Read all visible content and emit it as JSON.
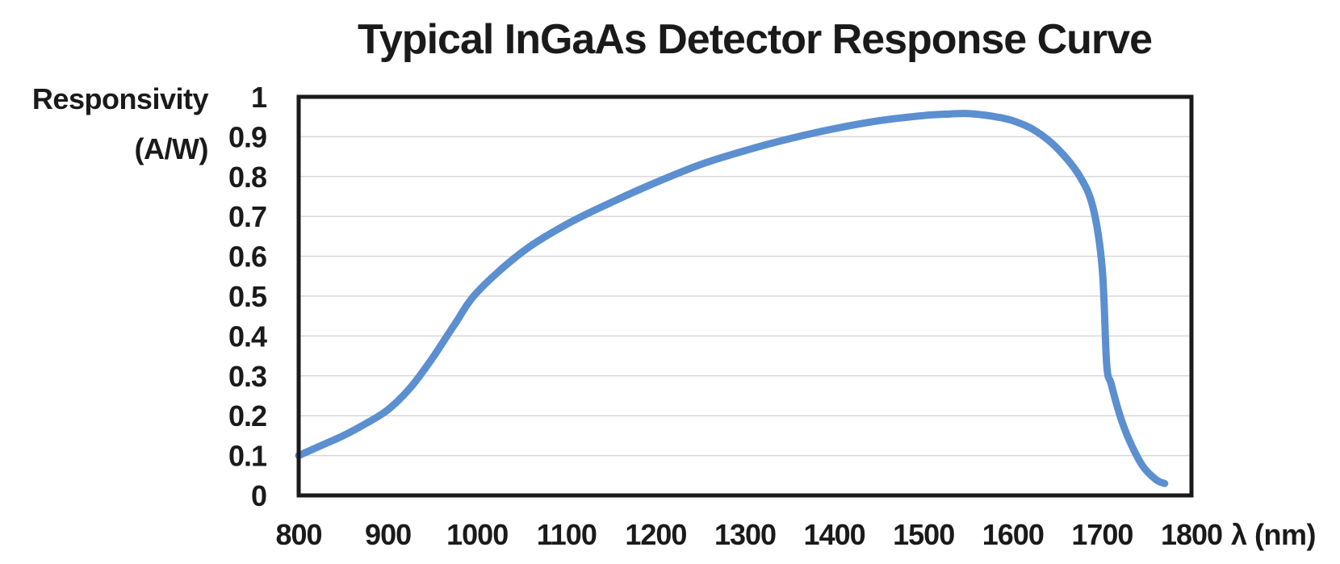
{
  "chart_data": {
    "type": "line",
    "title": "Typical InGaAs Detector Response Curve",
    "ylabel_line1": "Responsivity",
    "ylabel_line2": "(A/W)",
    "xlabel": "λ (nm)",
    "xlim": [
      800,
      1800
    ],
    "ylim": [
      0,
      1
    ],
    "xticks": [
      800,
      900,
      1000,
      1100,
      1200,
      1300,
      1400,
      1500,
      1600,
      1700,
      1800
    ],
    "yticks": [
      0,
      0.1,
      0.2,
      0.3,
      0.4,
      0.5,
      0.6,
      0.7,
      0.8,
      0.9,
      1
    ],
    "ytick_labels": [
      "0",
      "0.1",
      "0.2",
      "0.3",
      "0.4",
      "0.5",
      "0.6",
      "0.7",
      "0.8",
      "0.9",
      "1"
    ],
    "grid": "horizontal",
    "line_color": "#5b8fd0",
    "series": [
      {
        "x": [
          800,
          825,
          850,
          875,
          900,
          925,
          950,
          975,
          1000,
          1050,
          1100,
          1150,
          1200,
          1250,
          1300,
          1350,
          1400,
          1450,
          1500,
          1530,
          1550,
          1575,
          1600,
          1625,
          1650,
          1675,
          1690,
          1700,
          1705,
          1710,
          1720,
          1730,
          1745,
          1760,
          1770
        ],
        "y": [
          0.1,
          0.125,
          0.15,
          0.18,
          0.215,
          0.27,
          0.345,
          0.43,
          0.51,
          0.61,
          0.68,
          0.735,
          0.785,
          0.83,
          0.865,
          0.895,
          0.92,
          0.94,
          0.953,
          0.957,
          0.958,
          0.952,
          0.94,
          0.915,
          0.87,
          0.8,
          0.72,
          0.57,
          0.33,
          0.28,
          0.2,
          0.14,
          0.075,
          0.04,
          0.03
        ]
      }
    ]
  }
}
